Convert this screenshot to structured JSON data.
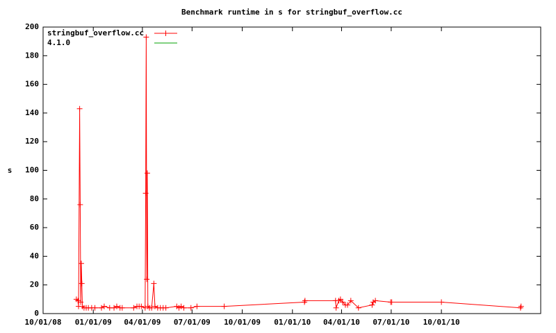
{
  "chart_data": {
    "type": "line",
    "title": "Benchmark runtime in s for stringbuf_overflow.cc",
    "y_label": "s",
    "x": [
      "2008-12-01",
      "2008-12-04",
      "2008-12-05",
      "2008-12-07",
      "2008-12-08",
      "2008-12-09",
      "2008-12-10",
      "2008-12-11",
      "2008-12-12",
      "2008-12-15",
      "2008-12-19",
      "2008-12-23",
      "2008-12-29",
      "2009-01-04",
      "2009-01-16",
      "2009-01-21",
      "2009-01-31",
      "2009-02-08",
      "2009-02-13",
      "2009-02-19",
      "2009-02-23",
      "2009-03-16",
      "2009-03-22",
      "2009-03-26",
      "2009-03-30",
      "2009-04-06",
      "2009-04-07",
      "2009-04-08",
      "2009-04-09",
      "2009-04-10",
      "2009-04-11",
      "2009-04-14",
      "2009-04-18",
      "2009-04-22",
      "2009-04-24",
      "2009-04-29",
      "2009-05-04",
      "2009-05-09",
      "2009-05-14",
      "2009-06-03",
      "2009-06-07",
      "2009-06-11",
      "2009-06-16",
      "2009-06-29",
      "2009-07-10",
      "2009-08-29",
      "2010-01-23",
      "2010-01-24",
      "2010-03-21",
      "2010-03-22",
      "2010-03-27",
      "2010-03-30",
      "2010-04-03",
      "2010-04-08",
      "2010-04-12",
      "2010-04-18",
      "2010-05-02",
      "2010-05-27",
      "2010-05-29",
      "2010-06-02",
      "2010-06-30",
      "2010-07-02",
      "2010-10-01",
      "2011-02-23",
      "2011-02-24"
    ],
    "series": [
      {
        "name": "stringbuf_overflow.cc",
        "color": "#ff0000",
        "values": [
          10,
          9,
          5,
          143,
          76,
          8,
          35,
          21,
          5,
          4,
          4,
          4,
          4,
          4,
          4,
          5,
          4,
          4,
          5,
          4,
          4,
          4,
          5,
          5,
          5,
          4,
          84,
          193,
          24,
          98,
          5,
          4,
          4,
          21,
          5,
          4,
          4,
          4,
          4,
          5,
          4,
          5,
          4,
          4,
          5,
          5,
          8,
          9,
          9,
          4,
          9,
          10,
          8,
          6,
          6,
          9,
          4,
          6,
          8,
          9,
          8,
          8,
          8,
          4,
          5
        ]
      },
      {
        "name": "4.1.0",
        "color": "#00a000",
        "values": [
          null,
          null,
          null,
          null,
          null,
          null,
          null,
          null,
          null,
          null,
          null,
          null,
          null,
          null,
          null,
          null,
          null,
          null,
          null,
          null,
          null,
          null,
          null,
          null,
          null,
          null,
          null,
          null,
          null,
          null,
          null,
          null,
          null,
          null,
          null,
          null,
          null,
          null,
          null,
          null,
          null,
          null,
          null,
          null,
          null,
          null,
          null,
          null,
          null,
          null,
          null,
          null,
          null,
          null,
          null,
          null,
          null,
          null,
          null,
          null,
          null,
          null,
          null,
          null,
          null
        ]
      }
    ],
    "xlim": [
      "2008-10-01",
      "2011-04-01"
    ],
    "xticks": [
      {
        "value": "2008-10-01",
        "label": "10/01/08"
      },
      {
        "value": "2009-01-01",
        "label": "01/01/09"
      },
      {
        "value": "2009-04-01",
        "label": "04/01/09"
      },
      {
        "value": "2009-07-01",
        "label": "07/01/09"
      },
      {
        "value": "2009-10-01",
        "label": "10/01/09"
      },
      {
        "value": "2010-01-01",
        "label": "01/01/10"
      },
      {
        "value": "2010-04-01",
        "label": "04/01/10"
      },
      {
        "value": "2010-07-01",
        "label": "07/01/10"
      },
      {
        "value": "2010-10-01",
        "label": "10/01/10"
      }
    ],
    "ylim": [
      0,
      200
    ],
    "yticks": [
      0,
      20,
      40,
      60,
      80,
      100,
      120,
      140,
      160,
      180,
      200
    ],
    "legend": "top-left",
    "grid": false
  }
}
